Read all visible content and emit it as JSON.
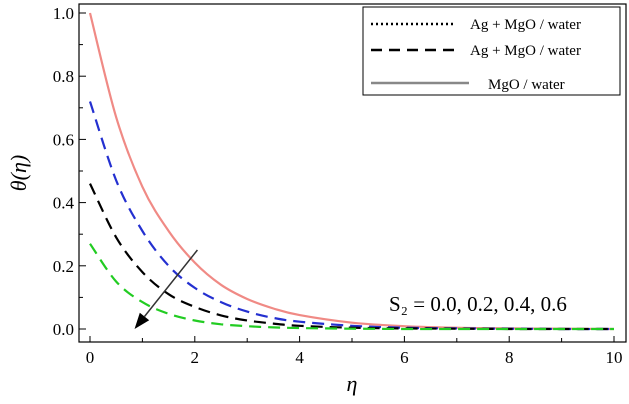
{
  "chart_data": {
    "type": "line",
    "xlabel": "η",
    "ylabel": "θ(η)",
    "xlim": [
      0,
      10
    ],
    "ylim": [
      0,
      1.0
    ],
    "x_ticks": [
      "0",
      "2",
      "4",
      "6",
      "8",
      "10"
    ],
    "y_ticks": [
      "0.0",
      "0.2",
      "0.4",
      "0.6",
      "0.8",
      "1.0"
    ],
    "grid": false,
    "legend_position": "top-right",
    "legend": [
      {
        "label": "Ag + MgO / water",
        "style": "dotted",
        "color": "#000000"
      },
      {
        "label": "Ag + MgO / water",
        "style": "dashed",
        "color": "#000000"
      },
      {
        "label": "MgO / water",
        "style": "solid",
        "color": "#888888"
      }
    ],
    "annotation": "S₂ = 0.0, 0.2, 0.4, 0.6",
    "arrow": {
      "from": [
        2.05,
        0.25
      ],
      "to": [
        0.85,
        0.0
      ],
      "color": "#333333"
    },
    "series": [
      {
        "style": "solid",
        "color": "#f08a85",
        "x": [
          0,
          0.5,
          1,
          1.5,
          2,
          2.5,
          3,
          3.5,
          4,
          5,
          6,
          7,
          8,
          9,
          10
        ],
        "y": [
          1.0,
          0.67,
          0.45,
          0.31,
          0.21,
          0.14,
          0.095,
          0.065,
          0.044,
          0.02,
          0.009,
          0.004,
          0.002,
          0.001,
          0.0
        ]
      },
      {
        "style": "dashed",
        "color": "#2430d0",
        "x": [
          0,
          0.5,
          1,
          1.5,
          2,
          2.5,
          3,
          3.5,
          4,
          5,
          6,
          7,
          8,
          9,
          10
        ],
        "y": [
          0.72,
          0.47,
          0.31,
          0.2,
          0.13,
          0.085,
          0.055,
          0.035,
          0.023,
          0.01,
          0.004,
          0.002,
          0.001,
          0.0,
          0.0
        ]
      },
      {
        "style": "dashed",
        "color": "#000000",
        "x": [
          0,
          0.5,
          1,
          1.5,
          2,
          2.5,
          3,
          3.5,
          4,
          5,
          6,
          7,
          8,
          9,
          10
        ],
        "y": [
          0.46,
          0.29,
          0.18,
          0.11,
          0.07,
          0.043,
          0.027,
          0.017,
          0.01,
          0.004,
          0.002,
          0.001,
          0.0,
          0.0,
          0.0
        ]
      },
      {
        "style": "dashed",
        "color": "#22cc22",
        "x": [
          0,
          0.5,
          1,
          1.5,
          2,
          2.5,
          3,
          3.5,
          4,
          5,
          6,
          7,
          8,
          9,
          10
        ],
        "y": [
          0.27,
          0.15,
          0.085,
          0.048,
          0.027,
          0.015,
          0.009,
          0.005,
          0.003,
          0.001,
          0.0,
          0.0,
          0.0,
          0.0,
          0.0
        ]
      }
    ]
  }
}
